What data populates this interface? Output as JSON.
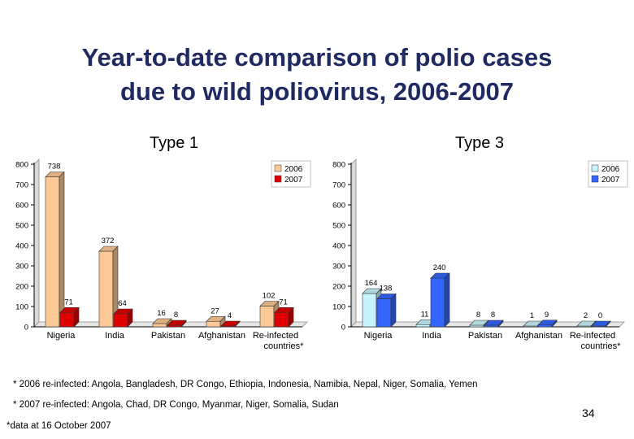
{
  "title_line1": "Year-to-date comparison of polio cases",
  "title_line2": "due to wild poliovirus, 2006-2007",
  "chart_data": [
    {
      "type": "bar",
      "title": "Type 1",
      "categories": [
        "Nigeria",
        "India",
        "Pakistan",
        "Afghanistan",
        "Re-infected countries*"
      ],
      "series": [
        {
          "name": "2006",
          "values": [
            738,
            372,
            16,
            27,
            102
          ],
          "color": "#fcc996"
        },
        {
          "name": "2007",
          "values": [
            71,
            64,
            8,
            4,
            71
          ],
          "color": "#e00000"
        }
      ],
      "ylim": [
        0,
        800
      ],
      "yticks": [
        0,
        100,
        200,
        300,
        400,
        500,
        600,
        700,
        800
      ],
      "xlabel": "",
      "ylabel": "",
      "legend": "top-right"
    },
    {
      "type": "bar",
      "title": "Type 3",
      "categories": [
        "Nigeria",
        "India",
        "Pakistan",
        "Afghanistan",
        "Re-infected countries*"
      ],
      "series": [
        {
          "name": "2006",
          "values": [
            164,
            11,
            8,
            1,
            2
          ],
          "color": "#c8f4ff"
        },
        {
          "name": "2007",
          "values": [
            138,
            240,
            8,
            9,
            0
          ],
          "color": "#3366ff"
        }
      ],
      "ylim": [
        0,
        800
      ],
      "yticks": [
        0,
        100,
        200,
        300,
        400,
        500,
        600,
        700,
        800
      ],
      "xlabel": "",
      "ylabel": "",
      "legend": "top-right"
    }
  ],
  "footnotes": {
    "reinfected_2006": "* 2006 re-infected: Angola, Bangladesh, DR Congo, Ethiopia, Indonesia, Namibia, Nepal, Niger, Somalia, Yemen",
    "reinfected_2007": "* 2007 re-infected: Angola, Chad, DR Congo, Myanmar, Niger, Somalia, Sudan",
    "data_date": "*data at 16 October 2007"
  },
  "page_number": "34"
}
